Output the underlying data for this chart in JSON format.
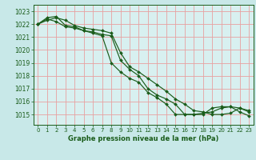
{
  "title": "Graphe pression niveau de la mer (hPa)",
  "bg_color": "#c8e8e8",
  "plot_bg_color": "#d8f0f0",
  "grid_color_major": "#e8a0a0",
  "grid_color_minor": "#e8c0c0",
  "line_color": "#1a5c1a",
  "xlim": [
    -0.5,
    23.5
  ],
  "ylim": [
    1014.2,
    1023.5
  ],
  "yticks": [
    1015,
    1016,
    1017,
    1018,
    1019,
    1020,
    1021,
    1022,
    1023
  ],
  "xticks": [
    0,
    1,
    2,
    3,
    4,
    5,
    6,
    7,
    8,
    9,
    10,
    11,
    12,
    13,
    14,
    15,
    16,
    17,
    18,
    19,
    20,
    21,
    22,
    23
  ],
  "series": [
    [
      1022.0,
      1022.4,
      1022.2,
      1021.8,
      1021.7,
      1021.5,
      1021.3,
      1021.1,
      1019.0,
      1018.3,
      1017.8,
      1017.5,
      1016.7,
      1016.3,
      1015.8,
      1015.0,
      1015.0,
      1015.0,
      1015.0,
      1015.5,
      1015.6,
      1015.6,
      1015.2,
      1014.9
    ],
    [
      1022.0,
      1022.5,
      1022.6,
      1021.9,
      1021.8,
      1021.5,
      1021.4,
      1021.2,
      1021.1,
      1019.2,
      1018.5,
      1018.0,
      1017.0,
      1016.5,
      1016.2,
      1015.8,
      1015.0,
      1015.0,
      1015.1,
      1015.2,
      1015.5,
      1015.6,
      1015.5,
      1015.2
    ],
    [
      1022.0,
      1022.3,
      1022.5,
      1022.3,
      1021.9,
      1021.7,
      1021.6,
      1021.5,
      1021.3,
      1019.8,
      1018.7,
      1018.3,
      1017.8,
      1017.3,
      1016.8,
      1016.2,
      1015.8,
      1015.3,
      1015.2,
      1015.0,
      1015.0,
      1015.1,
      1015.5,
      1015.3
    ]
  ],
  "title_fontsize": 6.0,
  "tick_fontsize": 5.5,
  "xlabel_fontsize": 5.0,
  "line_width": 0.85,
  "marker_size": 2.0
}
